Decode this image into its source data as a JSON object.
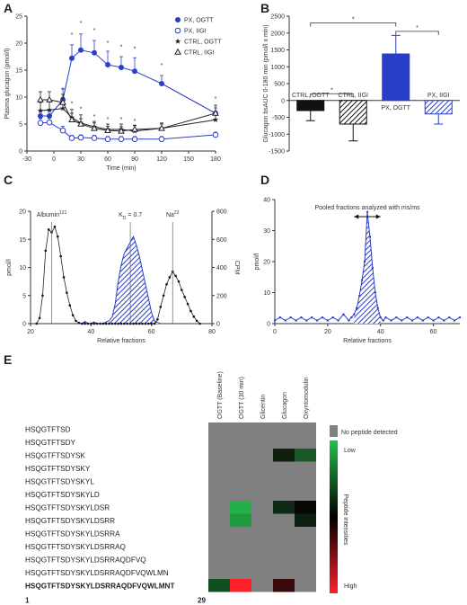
{
  "panels": {
    "a": "A",
    "b": "B",
    "c": "C",
    "d": "D",
    "e": "E"
  },
  "chart_data": [
    {
      "panel": "A",
      "type": "line",
      "xlabel": "Time (min)",
      "ylabel": "Plasma glucagon (pmol/l)",
      "xlim": [
        -30,
        180
      ],
      "ylim": [
        0,
        25
      ],
      "xticks": [
        -30,
        0,
        30,
        60,
        90,
        120,
        150,
        180
      ],
      "yticks": [
        0,
        5,
        10,
        15,
        20,
        25
      ],
      "series": [
        {
          "name": "PX, OGTT",
          "color": "#2a3fc9",
          "marker": "filled-circle",
          "x": [
            -15,
            -5,
            10,
            20,
            30,
            45,
            60,
            75,
            90,
            120,
            180
          ],
          "y": [
            6.5,
            6.5,
            9.5,
            17.2,
            18.7,
            18.2,
            16.0,
            15.5,
            14.8,
            12.5,
            7.0
          ],
          "err": [
            1.0,
            1.0,
            2.0,
            2.5,
            3.0,
            2.3,
            2.5,
            2.0,
            2.5,
            1.5,
            1.0
          ]
        },
        {
          "name": "PX, IIGI",
          "color": "#2a3fc9",
          "marker": "open-circle",
          "x": [
            -15,
            -5,
            10,
            20,
            30,
            45,
            60,
            75,
            90,
            120,
            180
          ],
          "y": [
            5.2,
            5.3,
            3.8,
            2.4,
            2.5,
            2.4,
            2.2,
            2.2,
            2.2,
            2.2,
            3.0
          ],
          "err": [
            0.8,
            0.8,
            0.8,
            0.5,
            0.5,
            0.5,
            0.5,
            0.5,
            0.5,
            0.5,
            0.5
          ]
        },
        {
          "name": "CTRL, OGTT",
          "color": "#222222",
          "marker": "filled-star",
          "x": [
            -15,
            -5,
            10,
            20,
            30,
            45,
            60,
            75,
            90,
            120,
            180
          ],
          "y": [
            7.5,
            7.6,
            7.9,
            6.2,
            5.2,
            4.5,
            4.0,
            4.0,
            3.7,
            4.2,
            5.8
          ],
          "err": [
            1.5,
            1.5,
            2.0,
            1.5,
            1.5,
            1.0,
            1.0,
            1.0,
            1.0,
            1.0,
            1.5
          ]
        },
        {
          "name": "CTRL, IIGI",
          "color": "#222222",
          "marker": "open-triangle",
          "x": [
            -15,
            -5,
            10,
            20,
            30,
            45,
            60,
            75,
            90,
            120,
            180
          ],
          "y": [
            9.5,
            9.5,
            9.0,
            5.8,
            5.0,
            4.2,
            3.8,
            3.7,
            4.0,
            4.2,
            7.0
          ],
          "err": [
            1.5,
            1.5,
            1.5,
            1.2,
            1.0,
            1.0,
            0.8,
            0.8,
            0.8,
            0.8,
            1.5
          ]
        }
      ],
      "significance_marks": [
        {
          "x": 20,
          "y": 21.2
        },
        {
          "x": 30,
          "y": 23.3
        },
        {
          "x": 45,
          "y": 22.0
        },
        {
          "x": 60,
          "y": 19.7
        },
        {
          "x": 75,
          "y": 18.9
        },
        {
          "x": 90,
          "y": 18.6
        },
        {
          "x": 120,
          "y": 15.5
        },
        {
          "x": 180,
          "y": 9.3
        },
        {
          "x": 10,
          "y": 11.0
        },
        {
          "x": 20,
          "y": 8.4
        },
        {
          "x": 30,
          "y": 7.4
        },
        {
          "x": 45,
          "y": 6.0
        },
        {
          "x": 60,
          "y": 5.5
        },
        {
          "x": 75,
          "y": 5.5
        },
        {
          "x": 90,
          "y": 5.2
        }
      ],
      "legend": "top-right",
      "star_symbol": "*"
    },
    {
      "panel": "B",
      "type": "bar",
      "ylabel": "Glucagon bsAUC 0-180 min (pmol/l x min)",
      "ylim": [
        -1500,
        2500
      ],
      "yticks": [
        -1500,
        -1000,
        -500,
        0,
        500,
        1000,
        1500,
        2000,
        2500
      ],
      "categories": [
        "CTRL, OGTT",
        "CTRL, IIGI",
        "PX, OGTT",
        "PX, IIGI"
      ],
      "values": [
        -300,
        -700,
        1380,
        -400
      ],
      "errors": [
        300,
        500,
        550,
        300
      ],
      "colors": [
        "#111111",
        "#111111",
        "#2a3fc9",
        "#2a3fc9"
      ],
      "fills": [
        "solid",
        "hatched",
        "solid",
        "hatched"
      ],
      "significance_brackets": [
        {
          "from": 0,
          "to": 1,
          "level": 200,
          "label": "*"
        },
        {
          "from": 0,
          "to": 2,
          "level": 2300,
          "label": "*"
        },
        {
          "from": 2,
          "to": 3,
          "level": 2050,
          "label": "*"
        }
      ]
    },
    {
      "panel": "C",
      "type": "line",
      "xlabel": "Relative fractions",
      "ylabel": "pmol/l",
      "y2label": "CPM",
      "xlim": [
        20,
        80
      ],
      "ylim": [
        0,
        20
      ],
      "y2lim": [
        0,
        800
      ],
      "xticks": [
        20,
        40,
        60,
        80
      ],
      "yticks": [
        0,
        5,
        10,
        15,
        20
      ],
      "y2ticks": [
        0,
        200,
        400,
        600,
        800
      ],
      "markers": [
        {
          "label": "Albumin",
          "sup": "121",
          "x": 27
        },
        {
          "label": "K",
          "sub": "D",
          "suffix": " = 0.7",
          "x": 53
        },
        {
          "label": "Na",
          "sup": "22",
          "x": 67
        }
      ],
      "series": [
        {
          "name": "CPM",
          "axis": "y2",
          "x": [
            22,
            23,
            24,
            25,
            26,
            27,
            28,
            29,
            30,
            31,
            32,
            33,
            34,
            35,
            36,
            37,
            38,
            39,
            40,
            41,
            42,
            43,
            44,
            45,
            46,
            47,
            48,
            49,
            50,
            51,
            52,
            53,
            54,
            55,
            56,
            57,
            58,
            59,
            60,
            61,
            62,
            63,
            64,
            65,
            66,
            67,
            68,
            69,
            70,
            71,
            72,
            73,
            74,
            75,
            76
          ],
          "y": [
            0,
            40,
            200,
            520,
            670,
            650,
            690,
            620,
            480,
            330,
            220,
            130,
            60,
            20,
            5,
            0,
            0,
            0,
            0,
            0,
            0,
            0,
            0,
            0,
            0,
            0,
            0,
            0,
            0,
            0,
            0,
            0,
            0,
            0,
            0,
            0,
            0,
            0,
            0,
            0,
            30,
            120,
            200,
            280,
            330,
            370,
            340,
            300,
            240,
            190,
            140,
            90,
            50,
            20,
            0
          ]
        },
        {
          "name": "pmol/l",
          "axis": "y",
          "fill": "hatched",
          "x": [
            36,
            37,
            38,
            39,
            40,
            41,
            42,
            43,
            44,
            45,
            46,
            47,
            48,
            49,
            50,
            51,
            52,
            53,
            54,
            55,
            56,
            57,
            58,
            59,
            60,
            61,
            62,
            63
          ],
          "y": [
            0,
            0,
            0.4,
            0,
            0,
            0.3,
            0,
            0,
            0,
            0.3,
            0.5,
            1.2,
            3.5,
            7.5,
            10.5,
            12.5,
            13.5,
            14.5,
            15.5,
            14.0,
            12.0,
            9.5,
            7.0,
            4.5,
            2.0,
            0.5,
            0.2,
            0
          ]
        }
      ]
    },
    {
      "panel": "D",
      "type": "line",
      "xlabel": "Relative fractions",
      "ylabel": "pmol/l",
      "xlim": [
        0,
        70
      ],
      "ylim": [
        0,
        40
      ],
      "xticks": [
        0,
        20,
        40,
        60
      ],
      "yticks": [
        0,
        10,
        20,
        30,
        40
      ],
      "annotation": "Pooled fractions analyzed with ms/ms",
      "annotation_range": [
        30,
        40
      ],
      "series": [
        {
          "name": "pmol/l",
          "fill": "hatched",
          "x": [
            0,
            2,
            4,
            6,
            8,
            10,
            12,
            14,
            16,
            18,
            20,
            22,
            24,
            26,
            28,
            29,
            30,
            31,
            32,
            33,
            34,
            35,
            36,
            37,
            38,
            39,
            40,
            41,
            42,
            44,
            46,
            48,
            50,
            52,
            54,
            56,
            58,
            60,
            62,
            64,
            66,
            68,
            70
          ],
          "y": [
            1,
            2,
            1,
            2,
            1,
            2,
            1,
            2,
            1,
            2,
            1,
            2,
            1,
            3,
            1,
            2,
            3,
            5,
            9,
            14,
            20,
            36,
            28,
            18,
            10,
            5,
            2,
            1,
            2,
            1,
            2,
            1,
            2,
            1,
            2,
            1,
            2,
            1,
            2,
            1,
            2,
            1,
            2
          ]
        }
      ]
    },
    {
      "panel": "E",
      "type": "heatmap",
      "columns": [
        "OGTT (Baseline)",
        "OGTT (30 min)",
        "Glicentin",
        "Glucagon",
        "Oxyntomodulin"
      ],
      "rows": [
        "HSQGTFTSD",
        "HSQGTFTSDY",
        "HSQGTFTSDYSK",
        "HSQGTFTSDYSKY",
        "HSQGTFTSDYSKYL",
        "HSQGTFTSDYSKYLD",
        "HSQGTFTSDYSKYLDSR",
        "HSQGTFTSDYSKYLDSRR",
        "HSQGTFTSDYSKYLDSRRA",
        "HSQGTFTSDYSKYLDSRRAQ",
        "HSQGTFTSDYSKYLDSRRAQDFVQ",
        "HSQGTFTSDYSKYLDSRRAQDFVQWLMN",
        "HSQGTFTSDYSKYLDSRRAQDFVQWLMNT"
      ],
      "bold_row": 12,
      "values": [
        [
          null,
          null,
          null,
          null,
          null
        ],
        [
          null,
          null,
          null,
          null,
          null
        ],
        [
          null,
          null,
          null,
          "#0e1f10",
          "#1a5a2a"
        ],
        [
          null,
          null,
          null,
          null,
          null
        ],
        [
          null,
          null,
          null,
          null,
          null
        ],
        [
          null,
          null,
          null,
          null,
          null
        ],
        [
          null,
          "#22b04a",
          null,
          "#0f2a14",
          "#060806"
        ],
        [
          null,
          "#1f9a40",
          null,
          null,
          "#0d1f10"
        ],
        [
          null,
          null,
          null,
          null,
          null
        ],
        [
          null,
          null,
          null,
          null,
          null
        ],
        [
          null,
          null,
          null,
          null,
          null
        ],
        [
          null,
          null,
          null,
          null,
          null
        ],
        [
          "#0f4f22",
          "#ff1f2a",
          null,
          "#3a0a0a",
          null
        ]
      ],
      "no_data_color": "#808080",
      "legend": {
        "no_data": "No peptide detected",
        "title": "Peptide intensities",
        "low": "Low",
        "high": "High",
        "gradient": [
          "#22c04c",
          "#000000",
          "#ff1f2a"
        ]
      },
      "residue_start": "1",
      "residue_end": "29"
    }
  ]
}
